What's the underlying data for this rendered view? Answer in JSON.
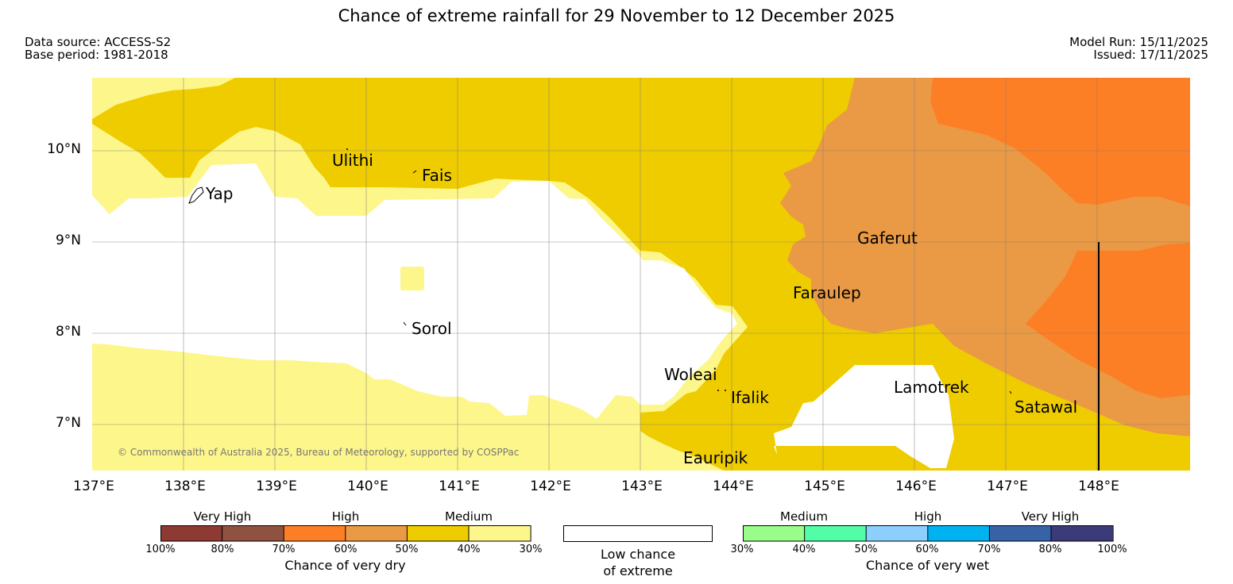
{
  "title": "Chance of extreme rainfall for 29 November to 12 December 2025",
  "meta": {
    "data_source": "Data source: ACCESS-S2",
    "base_period": "Base period: 1981-2018",
    "model_run": "Model Run: 15/11/2025",
    "issued": "Issued: 17/11/2025"
  },
  "map": {
    "lat_labels": [
      "10°N",
      "9°N",
      "8°N",
      "7°N"
    ],
    "lon_labels": [
      "137°E",
      "138°E",
      "139°E",
      "140°E",
      "141°E",
      "142°E",
      "143°E",
      "144°E",
      "145°E",
      "146°E",
      "147°E",
      "148°E"
    ],
    "places": [
      "Yap",
      "Ulithi",
      "Fais",
      "Gaferut",
      "Faraulep",
      "Sorol",
      "Woleai",
      "Ifalik",
      "Lamotrek",
      "Satawal",
      "Eauripik"
    ],
    "copyright": "© Commonwealth of Australia 2025, Bureau of Meteorology, supported by COSPPac",
    "colors": {
      "medium_40_50": "#eecc00",
      "medium_30_40": "#fdf68b",
      "high_60_70": "#ea9a45",
      "high_70_80": "#fd7f25",
      "low": "#ffffff"
    }
  },
  "legend": {
    "dry": {
      "categories": [
        "Very High",
        "High",
        "Medium"
      ],
      "ticks": [
        "100%",
        "80%",
        "70%",
        "60%",
        "50%",
        "40%",
        "30%"
      ],
      "colors": [
        "#8d3a33",
        "#8f5140",
        "#fd7f25",
        "#ea9a45",
        "#eecc00",
        "#fdf68b"
      ],
      "title": "Chance of very dry"
    },
    "low": {
      "line1": "Low chance",
      "line2": "of extreme"
    },
    "wet": {
      "categories": [
        "Medium",
        "High",
        "Very High"
      ],
      "ticks": [
        "30%",
        "40%",
        "50%",
        "60%",
        "70%",
        "80%",
        "100%"
      ],
      "colors": [
        "#9afc8b",
        "#51fda7",
        "#8ccffd",
        "#00b3f0",
        "#3763a6",
        "#3b3b7a"
      ],
      "title": "Chance of very wet"
    }
  }
}
